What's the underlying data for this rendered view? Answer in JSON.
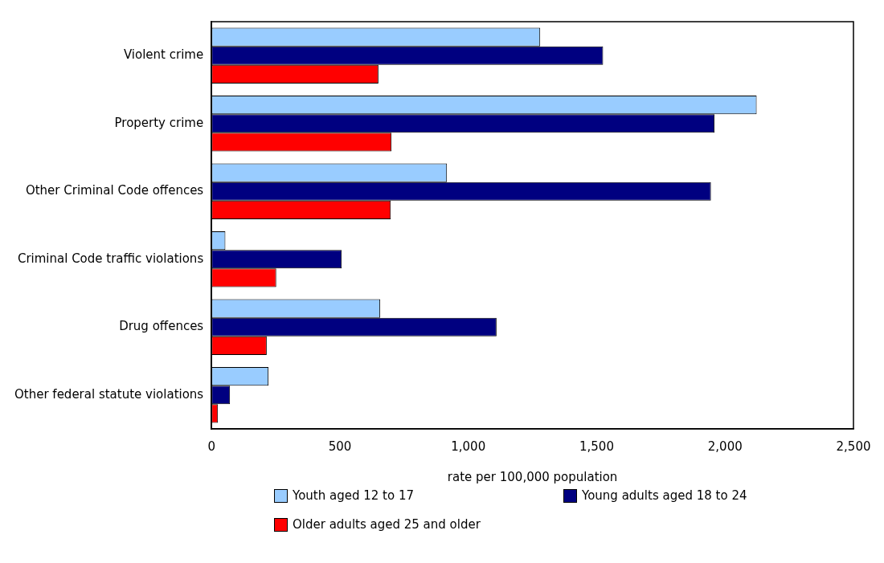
{
  "chart_data": {
    "type": "bar",
    "orientation": "horizontal",
    "xlabel": "rate per 100,000 population",
    "categories": [
      "Violent crime",
      "Property crime",
      "Other Criminal Code offences",
      "Criminal Code traffic violations",
      "Drug offences",
      "Other federal statute violations"
    ],
    "series": [
      {
        "name": "Youth aged 12 to 17",
        "color": "#99ccff",
        "values": [
          1280,
          2123,
          917,
          54,
          657,
          222
        ]
      },
      {
        "name": "Young adults aged 18 to 24",
        "color": "#000080",
        "values": [
          1525,
          1959,
          1945,
          507,
          1110,
          72
        ]
      },
      {
        "name": "Older adults aged 25 and older",
        "color": "#ff0000",
        "values": [
          650,
          701,
          698,
          252,
          215,
          25
        ]
      }
    ],
    "xlim": [
      0,
      2500
    ],
    "xticks": [
      0,
      {
        "value": 500,
        "label": "500"
      },
      {
        "value": 1000,
        "label": "1,000"
      },
      {
        "value": 1500,
        "label": "1,500"
      },
      {
        "value": 2000,
        "label": "2,000"
      },
      {
        "value": 2500,
        "label": "2,500"
      }
    ],
    "grid": false,
    "legend": "bottom"
  }
}
